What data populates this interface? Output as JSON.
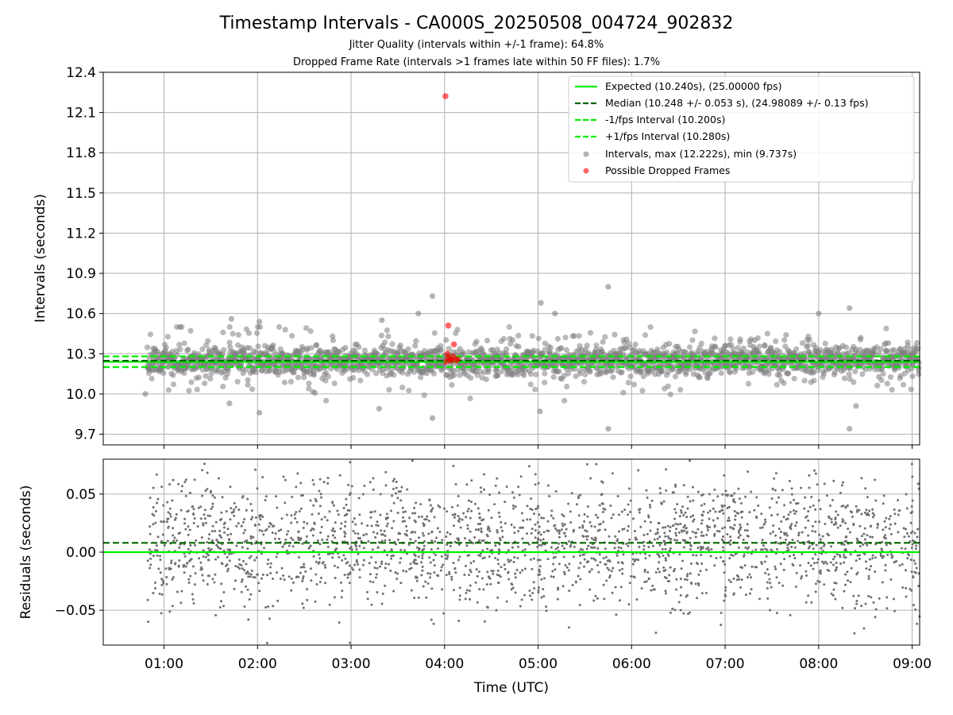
{
  "title": "Timestamp Intervals - CA000S_20250508_004724_902832",
  "subtitle1": "Jitter Quality (intervals within +/-1 frame): 64.8%",
  "subtitle2": "Dropped Frame Rate (intervals >1 frames late within 50 FF files): 1.7%",
  "colors": {
    "expected": "#00ee00",
    "median": "#006400",
    "bounds": "#00ee00",
    "intervals": "#808080",
    "dropped": "#ff0000"
  },
  "chart_data": [
    {
      "type": "scatter",
      "panel": "top",
      "ylabel": "Intervals (seconds)",
      "xlabel": "",
      "x_range_hours": [
        0.35,
        9.08
      ],
      "ylim": [
        9.62,
        12.4
      ],
      "yticks": [
        "9.7",
        "10.0",
        "10.3",
        "10.6",
        "10.9",
        "11.2",
        "11.5",
        "11.8",
        "12.1",
        "12.4"
      ],
      "grid": true,
      "legend_position": "top-right",
      "reference_lines": [
        {
          "label": "Expected (10.240s), (25.00000 fps)",
          "y": 10.24,
          "style": "solid",
          "color": "#00ee00"
        },
        {
          "label": "Median (10.248 +/- 0.053 s), (24.98089 +/- 0.13 fps)",
          "y": 10.248,
          "style": "dashed",
          "color": "#006400"
        },
        {
          "label": "-1/fps Interval (10.200s)",
          "y": 10.2,
          "style": "dashed",
          "color": "#00ee00"
        },
        {
          "label": "+1/fps Interval (10.280s)",
          "y": 10.28,
          "style": "dashed",
          "color": "#00ee00"
        }
      ],
      "scatter_series": [
        {
          "label": "Intervals, max (12.222s), min (9.737s)",
          "max": 12.222,
          "min": 9.737,
          "count_approx": 2400,
          "typical_range": [
            10.15,
            10.35
          ],
          "notable_points": [
            {
              "x": 0.8,
              "y": 10.0
            },
            {
              "x": 1.72,
              "y": 10.56
            },
            {
              "x": 1.7,
              "y": 9.93
            },
            {
              "x": 2.02,
              "y": 10.54
            },
            {
              "x": 2.02,
              "y": 9.86
            },
            {
              "x": 3.33,
              "y": 10.55
            },
            {
              "x": 3.3,
              "y": 9.89
            },
            {
              "x": 3.72,
              "y": 10.6
            },
            {
              "x": 3.87,
              "y": 10.73
            },
            {
              "x": 3.87,
              "y": 9.82
            },
            {
              "x": 5.03,
              "y": 10.68
            },
            {
              "x": 5.18,
              "y": 10.6
            },
            {
              "x": 5.02,
              "y": 9.87
            },
            {
              "x": 5.75,
              "y": 10.8
            },
            {
              "x": 5.75,
              "y": 9.74
            },
            {
              "x": 8.0,
              "y": 10.6
            },
            {
              "x": 8.33,
              "y": 10.64
            },
            {
              "x": 8.33,
              "y": 9.74
            },
            {
              "x": 8.4,
              "y": 9.91
            }
          ]
        },
        {
          "label": "Possible Dropped Frames",
          "points": [
            {
              "x": 4.01,
              "y": 12.222
            },
            {
              "x": 4.04,
              "y": 10.51
            },
            {
              "x": 4.1,
              "y": 10.37
            },
            {
              "x": 4.03,
              "y": 10.3
            },
            {
              "x": 4.04,
              "y": 10.27
            },
            {
              "x": 4.06,
              "y": 10.26
            },
            {
              "x": 4.09,
              "y": 10.28
            },
            {
              "x": 4.12,
              "y": 10.25
            },
            {
              "x": 4.14,
              "y": 10.26
            },
            {
              "x": 4.02,
              "y": 10.24
            },
            {
              "x": 4.07,
              "y": 10.25
            }
          ]
        }
      ]
    },
    {
      "type": "scatter",
      "panel": "bottom",
      "ylabel": "Residuals (seconds)",
      "xlabel": "Time (UTC)",
      "x_range_hours": [
        0.35,
        9.08
      ],
      "ylim": [
        -0.08,
        0.08
      ],
      "yticks": [
        "−0.05",
        "0.00",
        "0.05"
      ],
      "ytick_values": [
        -0.05,
        0.0,
        0.05
      ],
      "xticks": [
        "01:00",
        "02:00",
        "03:00",
        "04:00",
        "05:00",
        "06:00",
        "07:00",
        "08:00",
        "09:00"
      ],
      "grid": true,
      "reference_lines": [
        {
          "y": 0.0,
          "style": "solid",
          "color": "#00ee00"
        },
        {
          "y": 0.008,
          "style": "dashed",
          "color": "#006400"
        }
      ],
      "residual_distribution": "dense scatter spread across full range, clustered near 0.00"
    }
  ]
}
